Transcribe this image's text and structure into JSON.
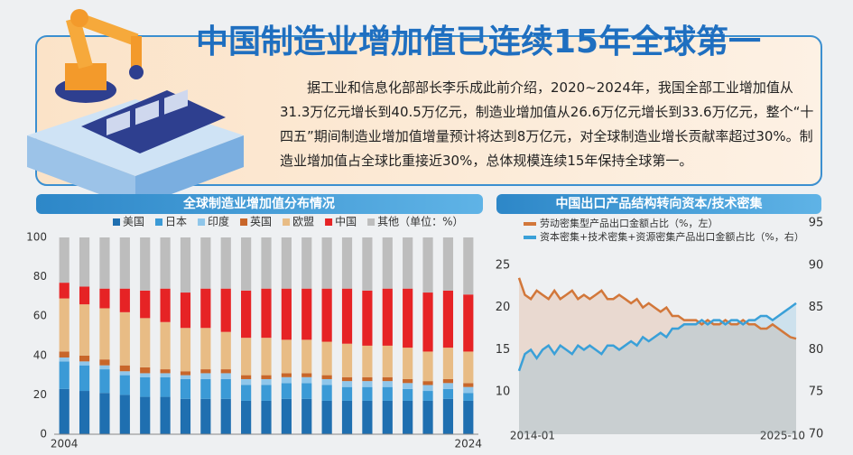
{
  "header": {
    "title": "中国制造业增加值已连续15年全球第一",
    "paragraph": "据工业和信息化部部长李乐成此前介绍，2020~2024年，我国全部工业增加值从31.3万亿元增长到40.5万亿元，制造业增加值从26.6万亿元增长到33.6万亿元，整个“十四五”期间制造业增加值增量预计将达到8万亿元，对全球制造业增长贡献率超过30%。制造业增加值占全球比重接近30%，总体规模连续15年保持全球第一。"
  },
  "chart_data": [
    {
      "type": "stacked-bar",
      "title": "全球制造业增加值分布情况",
      "legend_note": "（单位：%）",
      "categories": [
        "2004",
        null,
        null,
        null,
        null,
        null,
        null,
        null,
        null,
        null,
        null,
        null,
        null,
        null,
        null,
        null,
        null,
        null,
        null,
        null,
        "2024"
      ],
      "series": [
        {
          "name": "美国",
          "color": "#1f6fb0",
          "values": [
            23,
            22,
            21,
            20,
            19,
            19,
            18,
            18,
            18,
            17,
            17,
            18,
            18,
            17,
            17,
            17,
            17,
            17,
            17,
            18,
            17
          ]
        },
        {
          "name": "日本",
          "color": "#3b9ad6",
          "values": [
            14,
            13,
            12,
            10,
            10,
            10,
            10,
            10,
            10,
            8,
            8,
            8,
            8,
            8,
            7,
            7,
            7,
            6,
            5,
            5,
            4
          ]
        },
        {
          "name": "印度",
          "color": "#8fc6ea",
          "values": [
            2,
            2,
            2,
            2,
            2,
            2,
            2,
            3,
            3,
            3,
            3,
            3,
            3,
            3,
            3,
            3,
            3,
            3,
            3,
            3,
            3
          ]
        },
        {
          "name": "英国",
          "color": "#c8662a",
          "values": [
            3,
            3,
            3,
            3,
            3,
            2,
            2,
            2,
            2,
            2,
            2,
            2,
            2,
            2,
            2,
            2,
            2,
            2,
            2,
            2,
            2
          ]
        },
        {
          "name": "欧盟",
          "color": "#e8bc85",
          "values": [
            27,
            26,
            26,
            27,
            25,
            24,
            22,
            21,
            19,
            19,
            19,
            17,
            17,
            17,
            17,
            16,
            16,
            16,
            15,
            16,
            16
          ]
        },
        {
          "name": "中国",
          "color": "#e62325",
          "values": [
            8,
            9,
            10,
            12,
            14,
            17,
            18,
            20,
            22,
            24,
            25,
            26,
            26,
            27,
            28,
            28,
            29,
            30,
            30,
            29,
            29
          ]
        },
        {
          "name": "其他",
          "color": "#bdbdbd",
          "values": [
            23,
            25,
            26,
            26,
            27,
            26,
            28,
            26,
            26,
            27,
            26,
            26,
            26,
            26,
            26,
            27,
            26,
            26,
            28,
            27,
            29
          ]
        }
      ],
      "ylim": [
        0,
        100
      ],
      "yticks": [
        0,
        20,
        40,
        60,
        80,
        100
      ],
      "grid": false
    },
    {
      "type": "line",
      "title": "中国出口产品结构转向资本/技术密集",
      "categories": [
        "2014-01",
        null,
        null,
        null,
        null,
        null,
        null,
        null,
        null,
        null,
        null,
        null,
        null,
        null,
        null,
        null,
        null,
        null,
        null,
        null,
        null,
        null,
        null,
        null,
        null,
        null,
        null,
        null,
        null,
        null,
        null,
        null,
        null,
        null,
        null,
        null,
        null,
        null,
        null,
        null,
        null,
        null,
        null,
        null,
        null,
        null,
        null,
        "2025-10"
      ],
      "series": [
        {
          "name": "劳动密集型产品出口金额占比（%，左）",
          "color": "#d2773a",
          "axis": "y",
          "values": [
            23.5,
            21.5,
            21,
            22,
            21.5,
            21,
            22,
            21,
            21.5,
            22,
            21,
            21.5,
            21,
            21.5,
            22,
            21,
            21,
            21.5,
            21,
            20.5,
            21,
            20,
            20.5,
            20,
            19.5,
            20,
            19,
            19,
            18.5,
            18.5,
            18.5,
            18,
            18.5,
            18,
            18,
            18.5,
            18,
            18,
            18.5,
            18,
            18,
            17.5,
            17.5,
            18,
            17.5,
            17,
            16.5,
            16.3
          ]
        },
        {
          "name": "资本密集+技术密集+资源密集产品出口金额占比（%，右）",
          "color": "#3aa0d8",
          "axis": "y2",
          "values": [
            77.5,
            79.5,
            80,
            79,
            80,
            80.5,
            79.5,
            80.5,
            80,
            79.5,
            80.5,
            80,
            80.5,
            80,
            79.5,
            80.5,
            80.5,
            80,
            80.5,
            81,
            80.5,
            81.5,
            81,
            81.5,
            82,
            81.5,
            82.5,
            82.5,
            83,
            83,
            83,
            83.5,
            83,
            83.5,
            83.5,
            83,
            83.5,
            83.5,
            83,
            83.5,
            83.5,
            84,
            84,
            83.5,
            84,
            84.5,
            85,
            85.5
          ]
        }
      ],
      "ylim": [
        5,
        30
      ],
      "yticks": [
        10,
        15,
        20,
        25
      ],
      "y2lim": [
        70,
        95
      ],
      "y2ticks": [
        70,
        75,
        80,
        85,
        90,
        95
      ],
      "grid": false
    }
  ]
}
